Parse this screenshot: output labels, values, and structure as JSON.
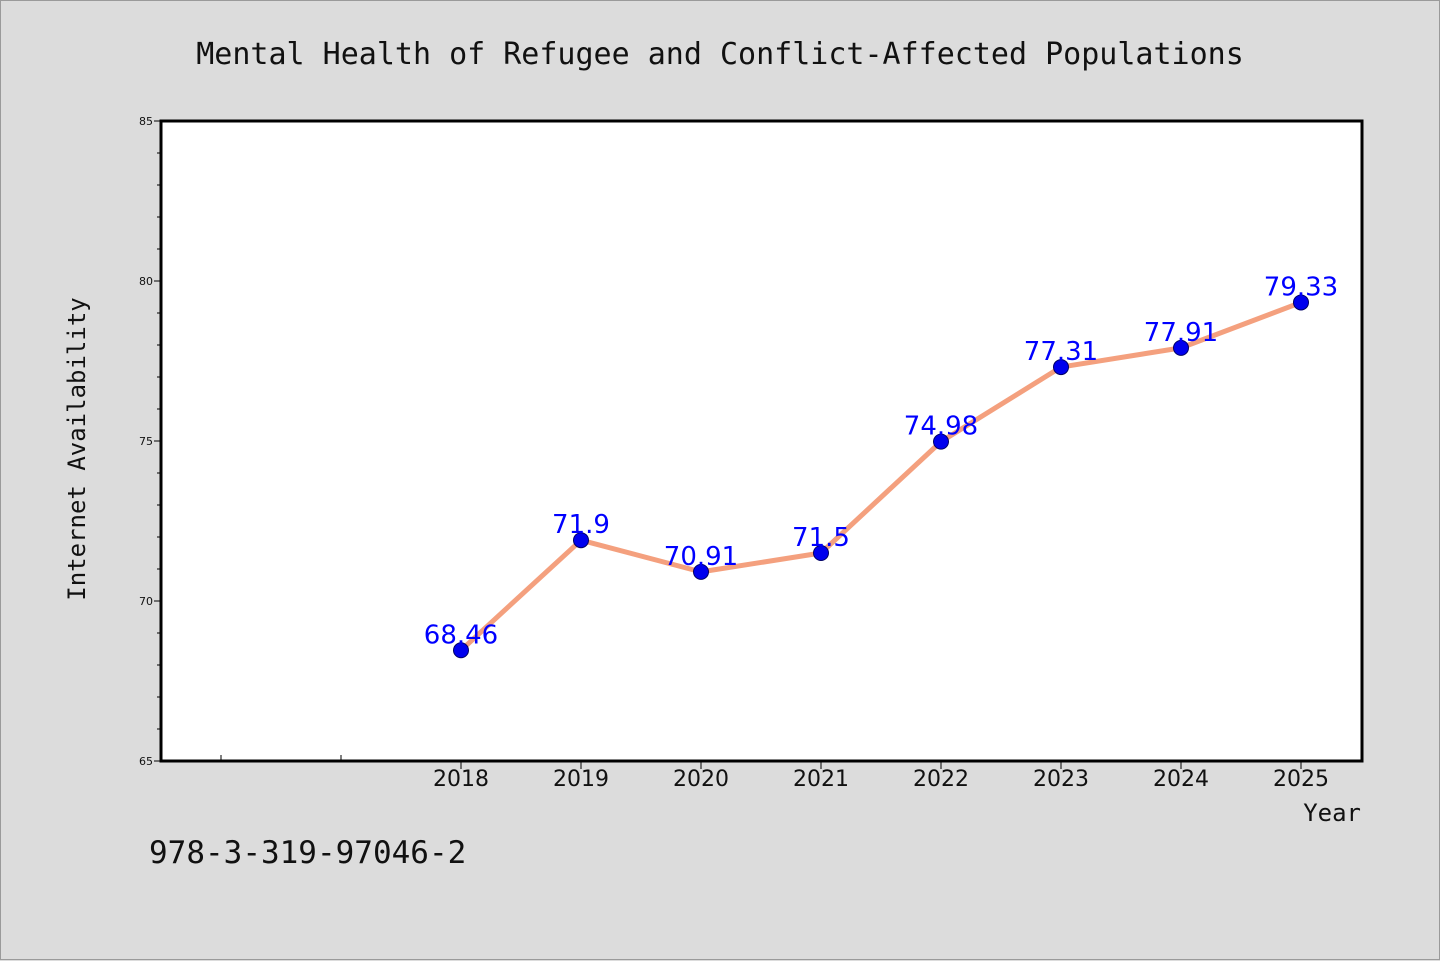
{
  "chart_data": {
    "type": "line",
    "title": "Mental Health of Refugee and Conflict-Affected Populations",
    "xlabel": "Year",
    "ylabel": "Internet Availability",
    "categories": [
      "2018",
      "2019",
      "2020",
      "2021",
      "2022",
      "2023",
      "2024",
      "2025"
    ],
    "series": [
      {
        "values": [
          68.46,
          71.9,
          70.91,
          71.5,
          74.98,
          77.31,
          77.91,
          79.33
        ],
        "data_labels": [
          "68.46",
          "71.9",
          "70.91",
          "71.5",
          "74.98",
          "77.31",
          "77.91",
          "79.33"
        ]
      }
    ],
    "ylim": [
      65,
      85
    ],
    "yticks": [
      "65",
      "70",
      "75",
      "80",
      "85"
    ],
    "grid": false,
    "legend": "none",
    "colors": {
      "line": "#f4a07e",
      "marker_fill": "#0000ee",
      "marker_edge": "#000066",
      "data_label": "#0000ff",
      "plot_background": "#ffffff",
      "page_background": "#dcdcdc"
    }
  },
  "footer": {
    "code": "978-3-319-97046-2"
  }
}
